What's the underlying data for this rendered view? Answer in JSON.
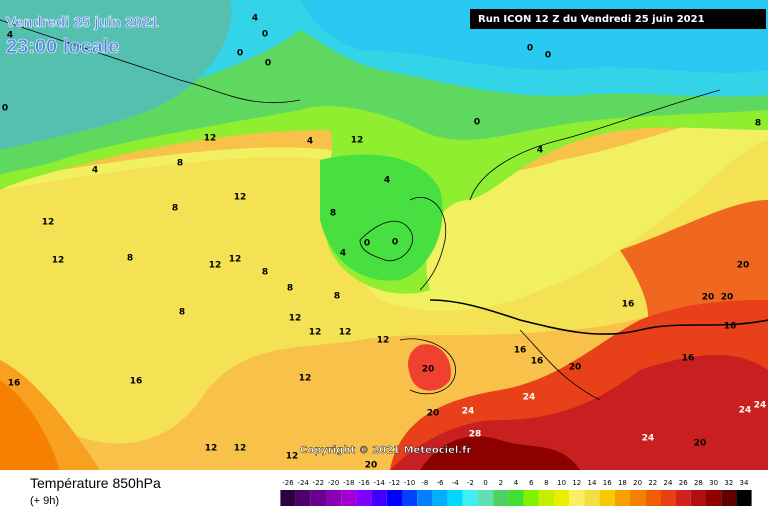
{
  "header": {
    "date": "Vendredi 25 juin 2021",
    "time": "23:00 locale",
    "run": "Run ICON 12 Z du Vendredi 25 juin 2021"
  },
  "copyright": "Copyright © 2021 Meteociel.fr",
  "footer": {
    "title": "Température 850hPa",
    "subtitle": "(+ 9h)"
  },
  "contour_labels": [
    4,
    0,
    0,
    0,
    12,
    8,
    4,
    12,
    8,
    12,
    12,
    8,
    12,
    12,
    8,
    8,
    8,
    8,
    12,
    12,
    12,
    12,
    12,
    16,
    16,
    12,
    12,
    12,
    12,
    4,
    8,
    4,
    0,
    0,
    4,
    0,
    0,
    0,
    4,
    8,
    16,
    16,
    16,
    20,
    20,
    24,
    20,
    28,
    24,
    24,
    20,
    16,
    16,
    20,
    20,
    20,
    24,
    24,
    20,
    4,
    0
  ],
  "scale": {
    "values": [
      -26,
      -24,
      -22,
      -20,
      -18,
      -16,
      -14,
      -12,
      -10,
      -8,
      -6,
      -4,
      -2,
      0,
      2,
      4,
      6,
      8,
      10,
      12,
      14,
      16,
      18,
      20,
      22,
      24,
      26,
      28,
      30,
      32,
      34
    ],
    "colors": [
      "#2d0040",
      "#4b006e",
      "#6a0090",
      "#8800b0",
      "#a000d0",
      "#8000ff",
      "#4000ff",
      "#0000ff",
      "#0040ff",
      "#0080ff",
      "#00b0ff",
      "#00d8ff",
      "#40f0f0",
      "#60e0b0",
      "#50d060",
      "#40e030",
      "#80f000",
      "#c0f000",
      "#e8f000",
      "#f8f060",
      "#f0e040",
      "#f8c800",
      "#f8a000",
      "#f88000",
      "#f06000",
      "#e84010",
      "#d02020",
      "#b01010",
      "#900000",
      "#600000",
      "#000000"
    ]
  }
}
